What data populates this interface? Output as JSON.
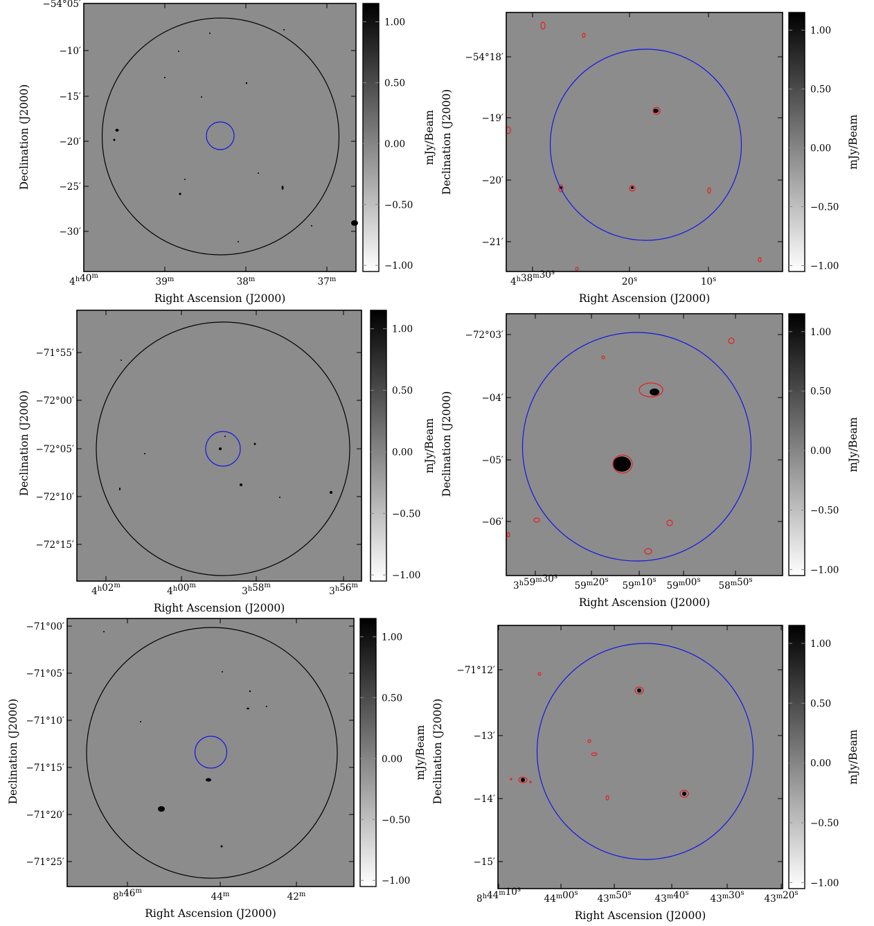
{
  "colorbar": {
    "label": "mJy/Beam",
    "ticks": [
      {
        "value": 1.0,
        "label": "1.00"
      },
      {
        "value": 0.5,
        "label": "0.50"
      },
      {
        "value": 0.0,
        "label": "0.00"
      },
      {
        "value": -0.5,
        "label": "−0.50"
      },
      {
        "value": -1.0,
        "label": "−1.00"
      }
    ],
    "range": [
      -1.05,
      1.15
    ]
  },
  "colors": {
    "background_gray": "#8c8c8c",
    "primary_beam_circle": "#000000",
    "zoom_circle": "#1414e6",
    "contour": "#e61e1e"
  },
  "chart_data": [
    {
      "type": "heatmap",
      "panel": "wide",
      "row": 1,
      "xlabel": "Right Ascension (J2000)",
      "ylabel": "Declination (J2000)",
      "x_ticks": [
        {
          "h": "4",
          "m": "40",
          "s": ""
        },
        {
          "h": "",
          "m": "39",
          "s": ""
        },
        {
          "h": "",
          "m": "38",
          "s": ""
        },
        {
          "h": "",
          "m": "37",
          "s": ""
        }
      ],
      "y_ticks": [
        "−54°05′",
        "−10′",
        "−15′",
        "−20′",
        "−25′",
        "−30′"
      ],
      "circles": [
        "black",
        "blue"
      ],
      "contours": false
    },
    {
      "type": "heatmap",
      "panel": "zoom",
      "row": 1,
      "xlabel": "Right Ascension (J2000)",
      "ylabel": "Declination (J2000)",
      "x_ticks": [
        {
          "h": "4",
          "m": "38",
          "s": "30"
        },
        {
          "h": "",
          "m": "",
          "s": "20"
        },
        {
          "h": "",
          "m": "",
          "s": "10"
        }
      ],
      "y_ticks": [
        "−54°18′",
        "−19′",
        "−20′",
        "−21′"
      ],
      "circles": [
        "blue"
      ],
      "contours": true
    },
    {
      "type": "heatmap",
      "panel": "wide",
      "row": 2,
      "xlabel": "Right Ascension (J2000)",
      "ylabel": "Declination (J2000)",
      "x_ticks": [
        {
          "h": "4",
          "m": "02",
          "s": ""
        },
        {
          "h": "4",
          "m": "00",
          "s": ""
        },
        {
          "h": "3",
          "m": "58",
          "s": ""
        },
        {
          "h": "3",
          "m": "56",
          "s": ""
        }
      ],
      "y_ticks": [
        "−71°55′",
        "−72°00′",
        "−72°05′",
        "−72°10′",
        "−72°15′"
      ],
      "circles": [
        "black",
        "blue"
      ],
      "contours": false
    },
    {
      "type": "heatmap",
      "panel": "zoom",
      "row": 2,
      "xlabel": "Right Ascension (J2000)",
      "ylabel": "Declination (J2000)",
      "x_ticks": [
        {
          "h": "3",
          "m": "59",
          "s": "30"
        },
        {
          "h": "",
          "m": "59",
          "s": "20"
        },
        {
          "h": "",
          "m": "59",
          "s": "10"
        },
        {
          "h": "",
          "m": "59",
          "s": "00"
        },
        {
          "h": "",
          "m": "58",
          "s": "50"
        }
      ],
      "y_ticks": [
        "−72°03′",
        "−04′",
        "−05′",
        "−06′"
      ],
      "circles": [
        "blue"
      ],
      "contours": true
    },
    {
      "type": "heatmap",
      "panel": "wide",
      "row": 3,
      "xlabel": "Right Ascension (J2000)",
      "ylabel": "Declination (J2000)",
      "x_ticks": [
        {
          "h": "8",
          "m": "46",
          "s": ""
        },
        {
          "h": "",
          "m": "44",
          "s": ""
        },
        {
          "h": "",
          "m": "42",
          "s": ""
        }
      ],
      "y_ticks": [
        "−71°00′",
        "−71°05′",
        "−71°10′",
        "−71°15′",
        "−71°20′",
        "−71°25′"
      ],
      "circles": [
        "black",
        "blue"
      ],
      "contours": false
    },
    {
      "type": "heatmap",
      "panel": "zoom",
      "row": 3,
      "xlabel": "Right Ascension (J2000)",
      "ylabel": "Declination (J2000)",
      "x_ticks": [
        {
          "h": "8",
          "m": "44",
          "s": "10"
        },
        {
          "h": "",
          "m": "44",
          "s": "00"
        },
        {
          "h": "",
          "m": "43",
          "s": "50"
        },
        {
          "h": "",
          "m": "43",
          "s": "40"
        },
        {
          "h": "",
          "m": "43",
          "s": "30"
        },
        {
          "h": "",
          "m": "43",
          "s": "20"
        }
      ],
      "y_ticks": [
        "−71°12′",
        "−13′",
        "−14′",
        "−15′"
      ],
      "circles": [
        "blue"
      ],
      "contours": true
    }
  ]
}
